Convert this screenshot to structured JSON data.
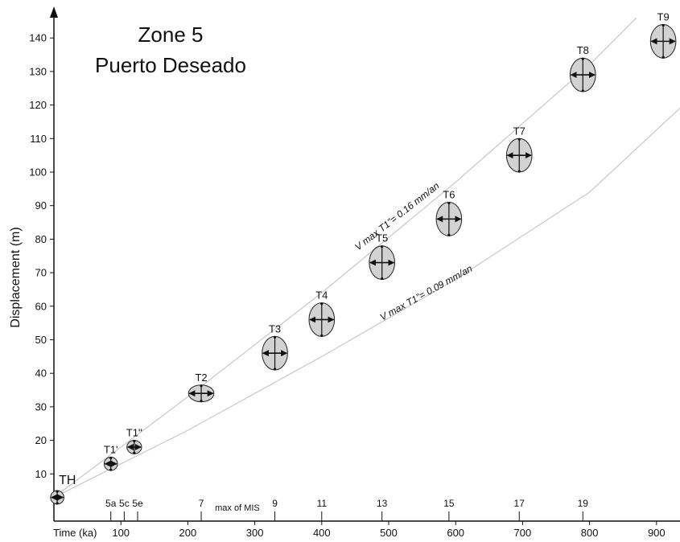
{
  "chart_data": {
    "type": "scatter",
    "title": [
      "Zone 5",
      "Puerto Deseado"
    ],
    "xlabel": "Time (ka)",
    "ylabel": "Displacement (m)",
    "xlim": [
      0,
      940
    ],
    "ylim": [
      0,
      150
    ],
    "xticks": [
      100,
      200,
      300,
      400,
      500,
      600,
      700,
      800,
      900
    ],
    "yticks": [
      10,
      20,
      30,
      40,
      50,
      60,
      70,
      80,
      90,
      100,
      110,
      120,
      130,
      140
    ],
    "grid": false,
    "points": [
      {
        "label": "TH",
        "x": 5,
        "y": 3,
        "x_err": 10,
        "y_err": 2
      },
      {
        "label": "T1'",
        "x": 85,
        "y": 13,
        "x_err": 10,
        "y_err": 2
      },
      {
        "label": "T1''",
        "x": 120,
        "y": 18,
        "x_err": 11,
        "y_err": 2
      },
      {
        "label": "T2",
        "x": 220,
        "y": 34,
        "x_err": 19,
        "y_err": 2.5
      },
      {
        "label": "T3",
        "x": 330,
        "y": 46,
        "x_err": 19,
        "y_err": 5
      },
      {
        "label": "T4",
        "x": 400,
        "y": 56,
        "x_err": 19,
        "y_err": 5
      },
      {
        "label": "T5",
        "x": 490,
        "y": 73,
        "x_err": 19,
        "y_err": 5
      },
      {
        "label": "T6",
        "x": 590,
        "y": 86,
        "x_err": 19,
        "y_err": 5
      },
      {
        "label": "T7",
        "x": 695,
        "y": 105,
        "x_err": 19,
        "y_err": 5
      },
      {
        "label": "T8",
        "x": 790,
        "y": 129,
        "x_err": 19,
        "y_err": 5
      },
      {
        "label": "T9",
        "x": 910,
        "y": 139,
        "x_err": 19,
        "y_err": 5
      }
    ],
    "mis_stages": [
      {
        "label": "5a",
        "x": 85
      },
      {
        "label": "5c",
        "x": 105
      },
      {
        "label": "5e",
        "x": 125
      },
      {
        "label": "7",
        "x": 220
      },
      {
        "label": "9",
        "x": 330
      },
      {
        "label": "11",
        "x": 400
      },
      {
        "label": "13",
        "x": 490
      },
      {
        "label": "15",
        "x": 590
      },
      {
        "label": "17",
        "x": 695
      },
      {
        "label": "19",
        "x": 790
      }
    ],
    "mis_caption": "max of MIS",
    "trend_lines": [
      {
        "label": "V max T1”= 0.16 mm/an",
        "points": [
          [
            0,
            3
          ],
          [
            200,
            33
          ],
          [
            400,
            64
          ],
          [
            600,
            97
          ],
          [
            800,
            132
          ],
          [
            870,
            146
          ]
        ]
      },
      {
        "label": "V max T1”= 0.09 mm/an",
        "points": [
          [
            0,
            3
          ],
          [
            200,
            23
          ],
          [
            400,
            45
          ],
          [
            600,
            68
          ],
          [
            800,
            94
          ],
          [
            940,
            120
          ]
        ]
      }
    ],
    "colors": {
      "ellipse_fill": "#d2d2d2",
      "ellipse_stroke": "#222222",
      "trend_line": "#c8c8c8",
      "axis": "#111111"
    }
  }
}
